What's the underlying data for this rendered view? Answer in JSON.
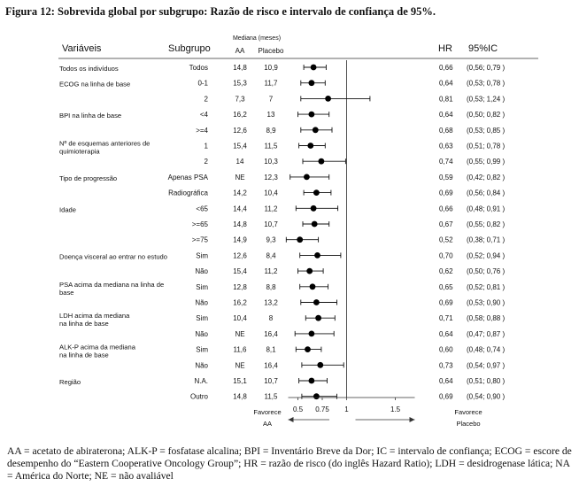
{
  "figure_title": "Figura 12: Sobrevida global por subgrupo: Razão de risco e intervalo de confiança de 95%.",
  "footnote": "AA = acetato de abiraterona; ALK-P = fosfatase alcalina; BPI = Inventário Breve da Dor; IC = intervalo de confiança; ECOG = escore de desempenho do “Eastern Cooperative Oncology Group”; HR = razão de risco (do inglês Hazard Ratio); LDH = desidrogenase lática; NA = América do Norte; NE = não avaliável",
  "chart_data": {
    "type": "forest",
    "headers": {
      "variables": "Variáveis",
      "subgroup": "Subgrupo",
      "median_group": "Mediana (meses)",
      "aa": "AA",
      "placebo": "Placebo",
      "hr": "HR",
      "ci": "95%IC"
    },
    "x_ticks": [
      {
        "value": 0.5,
        "label": "0.5"
      },
      {
        "value": 0.75,
        "label": "0.75"
      },
      {
        "value": 1,
        "label": "1"
      },
      {
        "value": 1.5,
        "label": "1.5"
      }
    ],
    "xlim": [
      0.35,
      1.75
    ],
    "favors_left": [
      "Favorece",
      "AA"
    ],
    "favors_right": [
      "Favorece",
      "Placebo"
    ],
    "variables": [
      {
        "label": [
          "Todos os indivíduos"
        ],
        "row": 0
      },
      {
        "label": [
          "ECOG na linha de base"
        ],
        "row": 1
      },
      {
        "label": [
          "BPI na linha de base"
        ],
        "row": 3
      },
      {
        "label": [
          "Nº de esquemas anteriores de",
          "quimioterapia"
        ],
        "row": 5
      },
      {
        "label": [
          "Tipo de progressão"
        ],
        "row": 7
      },
      {
        "label": [
          "Idade"
        ],
        "row": 9
      },
      {
        "label": [
          "Doença visceral ao entrar no estudo"
        ],
        "row": 12
      },
      {
        "label": [
          "PSA acima da mediana na linha de",
          "base"
        ],
        "row": 14
      },
      {
        "label": [
          "LDH acima da mediana",
          "na linha de base"
        ],
        "row": 16
      },
      {
        "label": [
          "ALK-P acima da mediana",
          "na linha de base"
        ],
        "row": 18
      },
      {
        "label": [
          "Região"
        ],
        "row": 20
      }
    ],
    "rows": [
      {
        "subgroup": "Todos",
        "aa": "14,8",
        "placebo": "10,9",
        "hr": 0.66,
        "lo": 0.56,
        "hi": 0.79,
        "hr_label": "0,66",
        "ci_label": "(0,56; 0,79 )"
      },
      {
        "subgroup": "0-1",
        "aa": "15,3",
        "placebo": "11,7",
        "hr": 0.64,
        "lo": 0.53,
        "hi": 0.78,
        "hr_label": "0,64",
        "ci_label": "(0,53; 0,78 )"
      },
      {
        "subgroup": "2",
        "aa": "7,3",
        "placebo": "7",
        "hr": 0.81,
        "lo": 0.53,
        "hi": 1.24,
        "hr_label": "0,81",
        "ci_label": "(0,53; 1,24 )"
      },
      {
        "subgroup": "<4",
        "aa": "16,2",
        "placebo": "13",
        "hr": 0.64,
        "lo": 0.5,
        "hi": 0.82,
        "hr_label": "0,64",
        "ci_label": "(0,50; 0,82 )"
      },
      {
        "subgroup": ">=4",
        "aa": "12,6",
        "placebo": "8,9",
        "hr": 0.68,
        "lo": 0.53,
        "hi": 0.85,
        "hr_label": "0,68",
        "ci_label": "(0,53; 0,85 )"
      },
      {
        "subgroup": "1",
        "aa": "15,4",
        "placebo": "11,5",
        "hr": 0.63,
        "lo": 0.51,
        "hi": 0.78,
        "hr_label": "0,63",
        "ci_label": "(0,51; 0,78 )"
      },
      {
        "subgroup": "2",
        "aa": "14",
        "placebo": "10,3",
        "hr": 0.74,
        "lo": 0.55,
        "hi": 0.99,
        "hr_label": "0,74",
        "ci_label": "(0,55; 0,99 )"
      },
      {
        "subgroup": "Apenas PSA",
        "aa": "NE",
        "placebo": "12,3",
        "hr": 0.59,
        "lo": 0.42,
        "hi": 0.82,
        "hr_label": "0,59",
        "ci_label": "(0,42; 0,82 )"
      },
      {
        "subgroup": "Radiográfica",
        "aa": "14,2",
        "placebo": "10,4",
        "hr": 0.69,
        "lo": 0.56,
        "hi": 0.84,
        "hr_label": "0,69",
        "ci_label": "(0,56; 0,84 )"
      },
      {
        "subgroup": "<65",
        "aa": "14,4",
        "placebo": "11,2",
        "hr": 0.66,
        "lo": 0.48,
        "hi": 0.91,
        "hr_label": "0,66",
        "ci_label": "(0,48; 0,91 )"
      },
      {
        "subgroup": ">=65",
        "aa": "14,8",
        "placebo": "10,7",
        "hr": 0.67,
        "lo": 0.55,
        "hi": 0.82,
        "hr_label": "0,67",
        "ci_label": "(0,55; 0,82 )"
      },
      {
        "subgroup": ">=75",
        "aa": "14,9",
        "placebo": "9,3",
        "hr": 0.52,
        "lo": 0.38,
        "hi": 0.71,
        "hr_label": "0,52",
        "ci_label": "(0,38; 0,71 )"
      },
      {
        "subgroup": "Sim",
        "aa": "12,6",
        "placebo": "8,4",
        "hr": 0.7,
        "lo": 0.52,
        "hi": 0.94,
        "hr_label": "0,70",
        "ci_label": "(0,52; 0,94 )"
      },
      {
        "subgroup": "Não",
        "aa": "15,4",
        "placebo": "11,2",
        "hr": 0.62,
        "lo": 0.5,
        "hi": 0.76,
        "hr_label": "0,62",
        "ci_label": "(0,50; 0,76 )"
      },
      {
        "subgroup": "Sim",
        "aa": "12,8",
        "placebo": "8,8",
        "hr": 0.65,
        "lo": 0.52,
        "hi": 0.81,
        "hr_label": "0,65",
        "ci_label": "(0,52; 0,81 )"
      },
      {
        "subgroup": "Não",
        "aa": "16,2",
        "placebo": "13,2",
        "hr": 0.69,
        "lo": 0.53,
        "hi": 0.9,
        "hr_label": "0,69",
        "ci_label": "(0,53; 0,90 )"
      },
      {
        "subgroup": "Sim",
        "aa": "10,4",
        "placebo": "8",
        "hr": 0.71,
        "lo": 0.58,
        "hi": 0.88,
        "hr_label": "0,71",
        "ci_label": "(0,58; 0,88 )"
      },
      {
        "subgroup": "Não",
        "aa": "NE",
        "placebo": "16,4",
        "hr": 0.64,
        "lo": 0.47,
        "hi": 0.87,
        "hr_label": "0,64",
        "ci_label": "(0,47; 0,87 )"
      },
      {
        "subgroup": "Sim",
        "aa": "11,6",
        "placebo": "8,1",
        "hr": 0.6,
        "lo": 0.48,
        "hi": 0.74,
        "hr_label": "0,60",
        "ci_label": "(0,48; 0,74 )"
      },
      {
        "subgroup": "Não",
        "aa": "NE",
        "placebo": "16,4",
        "hr": 0.73,
        "lo": 0.54,
        "hi": 0.97,
        "hr_label": "0,73",
        "ci_label": "(0,54; 0,97 )"
      },
      {
        "subgroup": "N.A.",
        "aa": "15,1",
        "placebo": "10,7",
        "hr": 0.64,
        "lo": 0.51,
        "hi": 0.8,
        "hr_label": "0,64",
        "ci_label": "(0,51; 0,80 )"
      },
      {
        "subgroup": "Outro",
        "aa": "14,8",
        "placebo": "11,5",
        "hr": 0.69,
        "lo": 0.54,
        "hi": 0.9,
        "hr_label": "0,69",
        "ci_label": "(0,54; 0,90 )"
      }
    ]
  }
}
